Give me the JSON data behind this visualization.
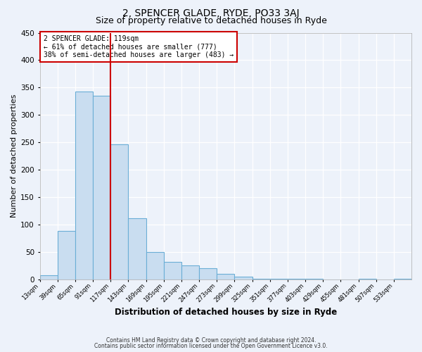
{
  "title": "2, SPENCER GLADE, RYDE, PO33 3AJ",
  "subtitle": "Size of property relative to detached houses in Ryde",
  "xlabel": "Distribution of detached houses by size in Ryde",
  "ylabel": "Number of detached properties",
  "bar_color": "#c9ddf0",
  "bar_edge_color": "#6baed6",
  "background_color": "#edf2fa",
  "grid_color": "#ffffff",
  "annotation_box_color": "#cc0000",
  "vline_color": "#cc0000",
  "vline_x": 117,
  "bin_edges": [
    13,
    39,
    65,
    91,
    117,
    143,
    169,
    195,
    221,
    247,
    273,
    299,
    325,
    351,
    377,
    403,
    429,
    455,
    481,
    507,
    533,
    559
  ],
  "bar_heights": [
    7,
    88,
    343,
    335,
    246,
    112,
    50,
    32,
    25,
    21,
    10,
    5,
    1,
    1,
    1,
    1,
    0,
    0,
    1,
    0,
    1
  ],
  "annotation_title": "2 SPENCER GLADE: 119sqm",
  "annotation_line1": "← 61% of detached houses are smaller (777)",
  "annotation_line2": "38% of semi-detached houses are larger (483) →",
  "ylim": [
    0,
    450
  ],
  "tick_labels": [
    "13sqm",
    "39sqm",
    "65sqm",
    "91sqm",
    "117sqm",
    "143sqm",
    "169sqm",
    "195sqm",
    "221sqm",
    "247sqm",
    "273sqm",
    "299sqm",
    "325sqm",
    "351sqm",
    "377sqm",
    "403sqm",
    "429sqm",
    "455sqm",
    "481sqm",
    "507sqm",
    "533sqm"
  ],
  "footer_line1": "Contains HM Land Registry data © Crown copyright and database right 2024.",
  "footer_line2": "Contains public sector information licensed under the Open Government Licence v3.0.",
  "title_fontsize": 10,
  "subtitle_fontsize": 9,
  "xlabel_fontsize": 8.5,
  "ylabel_fontsize": 8
}
